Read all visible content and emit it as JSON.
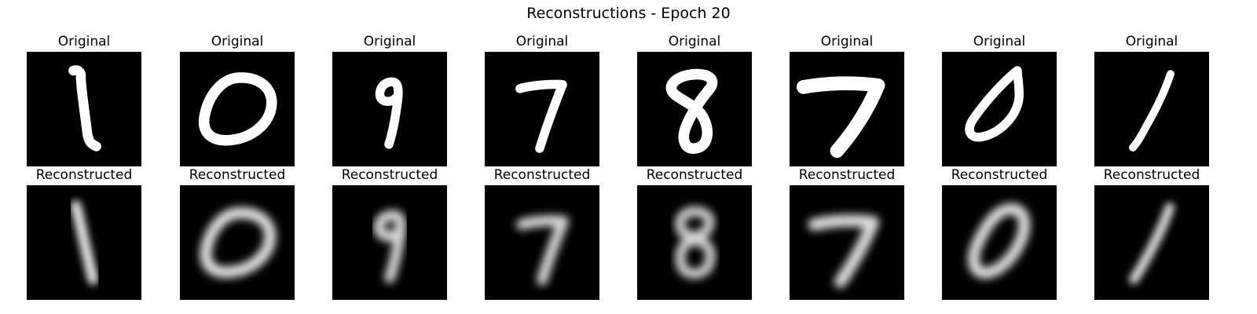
{
  "figure": {
    "title": "Reconstructions - Epoch 20"
  },
  "rows": [
    {
      "kind": "original",
      "panels": [
        {
          "title": "Original",
          "digit": "1"
        },
        {
          "title": "Original",
          "digit": "0"
        },
        {
          "title": "Original",
          "digit": "9"
        },
        {
          "title": "Original",
          "digit": "7"
        },
        {
          "title": "Original",
          "digit": "8"
        },
        {
          "title": "Original",
          "digit": "7"
        },
        {
          "title": "Original",
          "digit": "0"
        },
        {
          "title": "Original",
          "digit": "1"
        }
      ]
    },
    {
      "kind": "reconstructed",
      "panels": [
        {
          "title": "Reconstructed",
          "digit": "1"
        },
        {
          "title": "Reconstructed",
          "digit": "0"
        },
        {
          "title": "Reconstructed",
          "digit": "9"
        },
        {
          "title": "Reconstructed",
          "digit": "7"
        },
        {
          "title": "Reconstructed",
          "digit": "8"
        },
        {
          "title": "Reconstructed",
          "digit": "7"
        },
        {
          "title": "Reconstructed",
          "digit": "0"
        },
        {
          "title": "Reconstructed",
          "digit": "1"
        }
      ]
    }
  ],
  "colors": {
    "background": "#000000",
    "stroke": "#ffffff"
  }
}
